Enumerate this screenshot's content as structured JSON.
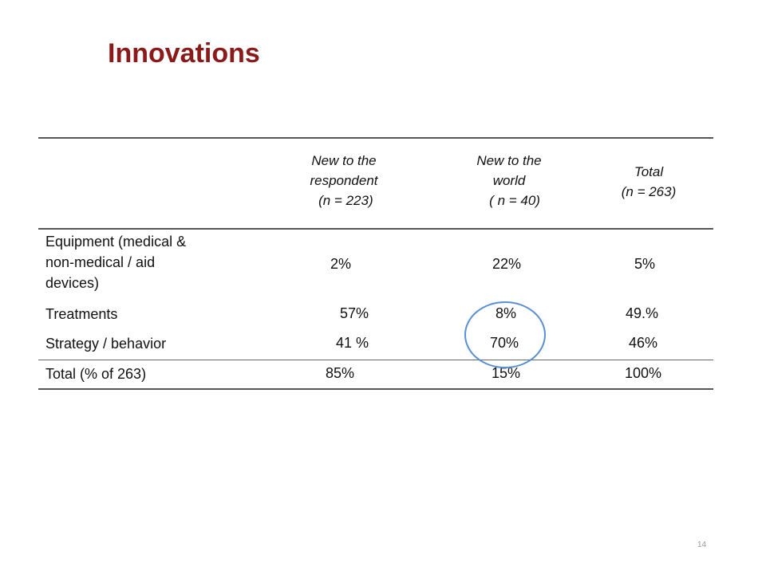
{
  "slide": {
    "title": "Innovations",
    "page_number": "14"
  },
  "table": {
    "headers": [
      {
        "lines": [
          "New to the",
          "respondent",
          " (n = 223)"
        ]
      },
      {
        "lines": [
          "New to the",
          "world",
          "   ( n = 40)"
        ]
      },
      {
        "lines": [
          "Total",
          "(n = 263)"
        ]
      }
    ],
    "rows": [
      {
        "label_lines": [
          "Equipment (medical &",
          "non-medical / aid",
          "devices)"
        ],
        "values": [
          "2%",
          "22%",
          "5%"
        ]
      },
      {
        "label_lines": [
          "Treatments"
        ],
        "values": [
          "57%",
          "8%",
          "49.%"
        ]
      },
      {
        "label_lines": [
          "Strategy / behavior"
        ],
        "values": [
          "41 %",
          "70%",
          "46%"
        ]
      },
      {
        "label_lines": [
          "Total (% of 263)"
        ],
        "values": [
          "85%",
          "15%",
          "100%"
        ]
      }
    ]
  },
  "annotation": {
    "color": "#5b8fd4",
    "marks": "circle around 70% / 15%"
  },
  "colors": {
    "title": "#8b1a1a",
    "rules": "#555555"
  }
}
